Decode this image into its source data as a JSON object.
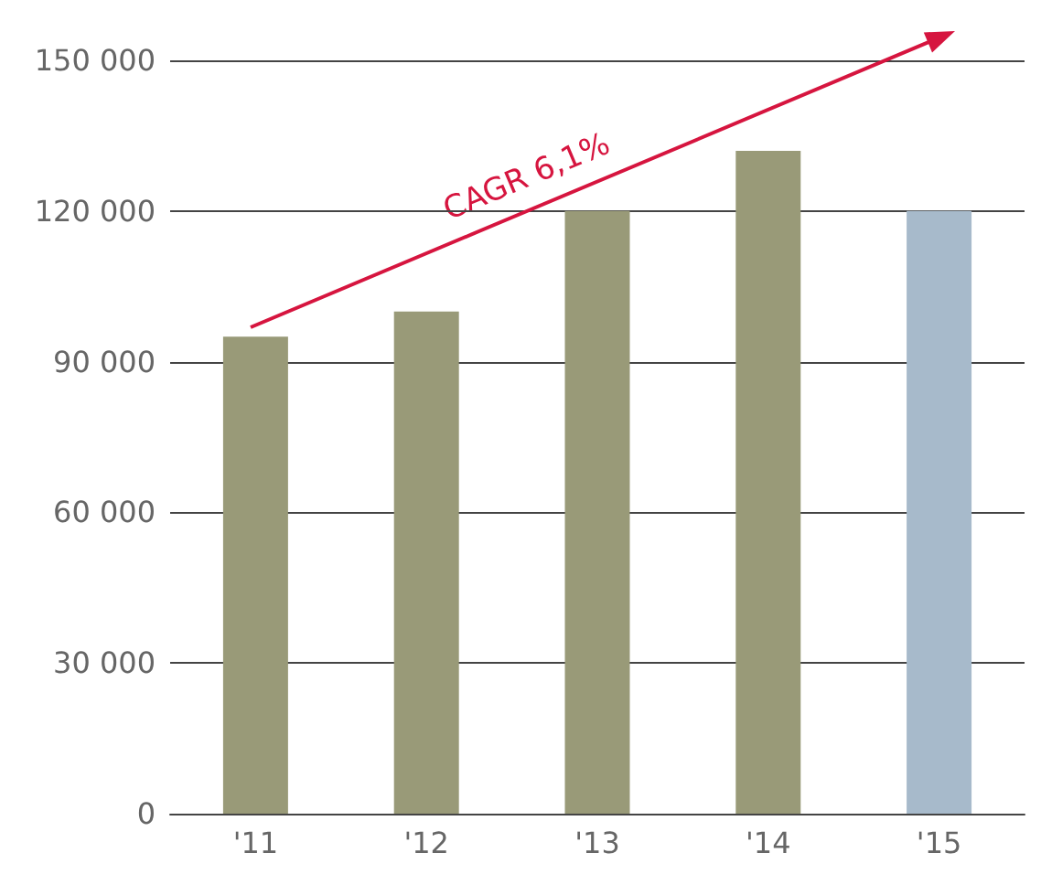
{
  "chart_data": {
    "type": "bar",
    "categories": [
      "'11",
      "'12",
      "'13",
      "'14",
      "'15"
    ],
    "values": [
      95000,
      100000,
      120000,
      132000,
      120000
    ],
    "colors": [
      "#999a78",
      "#999a78",
      "#999a78",
      "#999a78",
      "#a7bacb"
    ],
    "ylim": [
      0,
      150000
    ],
    "yticks": [
      {
        "value": 0,
        "label": "0"
      },
      {
        "value": 30000,
        "label": "30 000"
      },
      {
        "value": 60000,
        "label": "60 000"
      },
      {
        "value": 90000,
        "label": "90 000"
      },
      {
        "value": 120000,
        "label": "120 000"
      },
      {
        "value": 150000,
        "label": "150 000"
      }
    ],
    "grid": "y",
    "annotations": [
      "CAGR 6,1%"
    ]
  }
}
